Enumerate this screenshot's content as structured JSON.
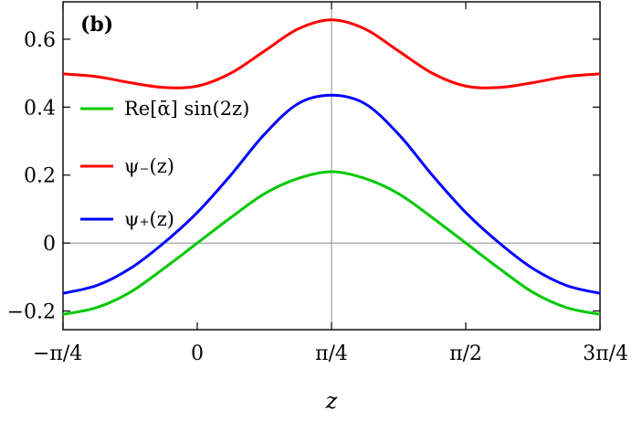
{
  "chart_data": {
    "type": "line",
    "panel_label": "(b)",
    "xlabel": "z",
    "ylabel": "",
    "xlim": [
      -0.7854,
      2.3562
    ],
    "ylim": [
      -0.255,
      0.71
    ],
    "x_ticks": [
      {
        "value": -0.7854,
        "label": "−π/4"
      },
      {
        "value": 0,
        "label": "0"
      },
      {
        "value": 0.7854,
        "label": "π/4"
      },
      {
        "value": 1.5708,
        "label": "π/2"
      },
      {
        "value": 2.3562,
        "label": "3π/4"
      }
    ],
    "y_ticks": [
      {
        "value": -0.2,
        "label": "−0.2"
      },
      {
        "value": 0,
        "label": "0"
      },
      {
        "value": 0.2,
        "label": "0.2"
      },
      {
        "value": 0.4,
        "label": "0.4"
      },
      {
        "value": 0.6,
        "label": "0.6"
      }
    ],
    "reference_lines": {
      "x": 0.7854,
      "y": 0
    },
    "grid": false,
    "legend_position": "left",
    "series": [
      {
        "name": "Re[ᾱ] sin(2z)",
        "color": "#00c800",
        "x": [
          -0.7854,
          -0.589,
          -0.3927,
          -0.1963,
          0,
          0.1963,
          0.3927,
          0.589,
          0.7854,
          0.9817,
          1.1781,
          1.3744,
          1.5708,
          1.7671,
          1.9635,
          2.1598,
          2.3562
        ],
        "y": [
          -0.21,
          -0.19,
          -0.145,
          -0.075,
          0.0,
          0.075,
          0.145,
          0.19,
          0.21,
          0.19,
          0.145,
          0.075,
          0.0,
          -0.075,
          -0.145,
          -0.19,
          -0.21
        ]
      },
      {
        "name": "ψ₋(z)",
        "color": "#ff0000",
        "x": [
          -0.7854,
          -0.589,
          -0.3927,
          -0.1963,
          0,
          0.1963,
          0.3927,
          0.589,
          0.7854,
          0.9817,
          1.1781,
          1.3744,
          1.5708,
          1.7671,
          1.9635,
          2.1598,
          2.3562
        ],
        "y": [
          0.498,
          0.49,
          0.472,
          0.458,
          0.462,
          0.5,
          0.565,
          0.63,
          0.657,
          0.63,
          0.565,
          0.5,
          0.462,
          0.458,
          0.472,
          0.49,
          0.498
        ]
      },
      {
        "name": "ψ₊(z)",
        "color": "#0000ff",
        "x": [
          -0.7854,
          -0.589,
          -0.3927,
          -0.1963,
          0,
          0.1963,
          0.3927,
          0.589,
          0.7854,
          0.9817,
          1.1781,
          1.3744,
          1.5708,
          1.7671,
          1.9635,
          2.1598,
          2.3562
        ],
        "y": [
          -0.148,
          -0.125,
          -0.075,
          0.0,
          0.09,
          0.2,
          0.32,
          0.41,
          0.435,
          0.41,
          0.32,
          0.2,
          0.09,
          0.0,
          -0.075,
          -0.125,
          -0.148
        ]
      }
    ]
  }
}
